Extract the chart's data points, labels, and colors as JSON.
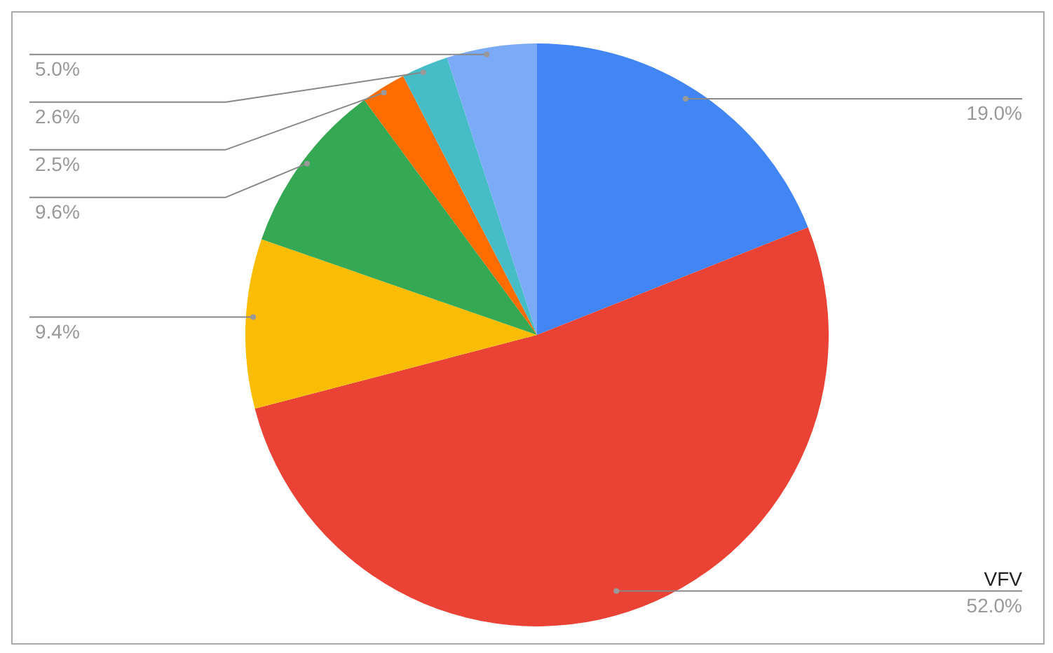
{
  "chart_data": {
    "type": "pie",
    "categories": [
      null,
      "VFV",
      null,
      null,
      null,
      null,
      null
    ],
    "values": [
      19.0,
      52.0,
      9.4,
      9.6,
      2.5,
      2.6,
      5.0
    ],
    "value_labels": [
      "19.0%",
      "52.0%",
      "9.4%",
      "9.6%",
      "2.5%",
      "2.6%",
      "5.0%"
    ],
    "colors": [
      "#4285f4",
      "#ea4335",
      "#fbbc04",
      "#34a853",
      "#ff6d01",
      "#46bdc6",
      "#7baaf7"
    ],
    "legend": false
  }
}
